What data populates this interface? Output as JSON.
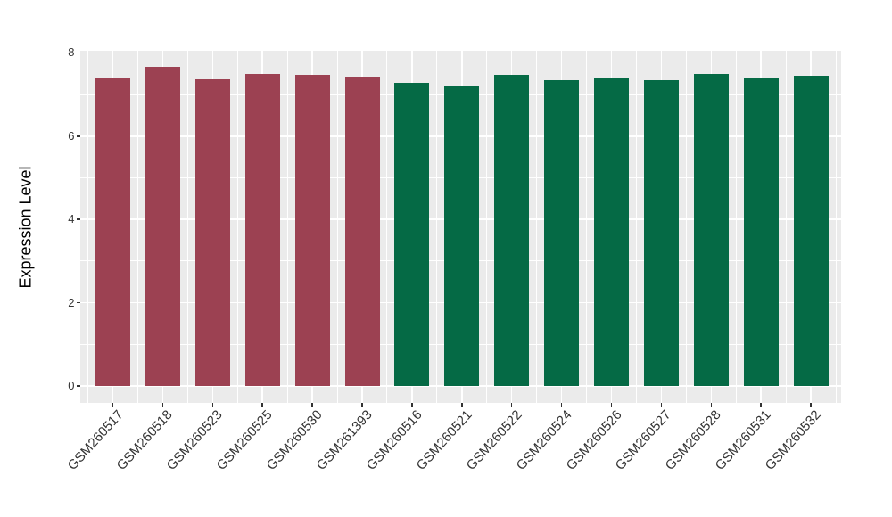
{
  "chart_data": {
    "type": "bar",
    "title": "",
    "xlabel": "",
    "ylabel": "Expression Level",
    "ylim": [
      0,
      8
    ],
    "yticks": [
      0,
      2,
      4,
      6,
      8
    ],
    "yticks_minor": [
      1,
      3,
      5,
      7
    ],
    "grid": true,
    "legend_position": "none",
    "panel_bg": "#EBEBEB",
    "grid_color": "#FFFFFF",
    "axis_text_color": "#333333",
    "categories": [
      "GSM260517",
      "GSM260518",
      "GSM260523",
      "GSM260525",
      "GSM260530",
      "GSM261393",
      "GSM260516",
      "GSM260521",
      "GSM260522",
      "GSM260524",
      "GSM260526",
      "GSM260527",
      "GSM260528",
      "GSM260531",
      "GSM260532"
    ],
    "values": [
      7.4,
      7.66,
      7.36,
      7.5,
      7.48,
      7.43,
      7.27,
      7.22,
      7.48,
      7.35,
      7.4,
      7.35,
      7.5,
      7.4,
      7.45
    ],
    "groups": [
      "group1",
      "group1",
      "group1",
      "group1",
      "group1",
      "group1",
      "group2",
      "group2",
      "group2",
      "group2",
      "group2",
      "group2",
      "group2",
      "group2",
      "group2"
    ],
    "group_colors": {
      "group1": "#9C4152",
      "group2": "#056A45"
    }
  }
}
